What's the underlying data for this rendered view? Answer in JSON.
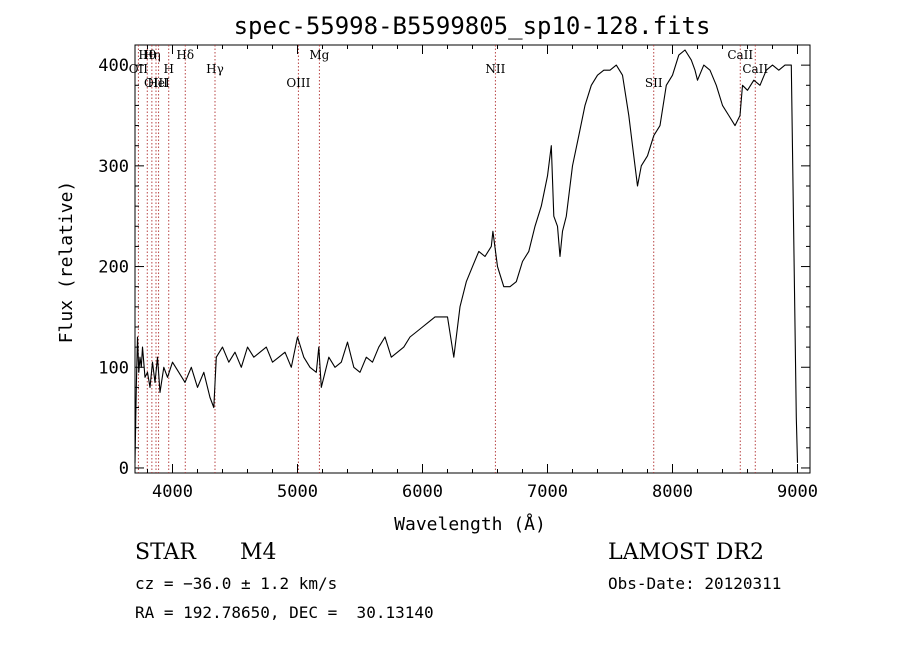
{
  "chart_data": {
    "type": "line",
    "title": "spec-55998-B5599805_sp10-128.fits",
    "xlabel": "Wavelength (Å)",
    "ylabel": "Flux (relative)",
    "xlim": [
      3700,
      9100
    ],
    "ylim": [
      -5,
      420
    ],
    "x_ticks": [
      4000,
      5000,
      6000,
      7000,
      8000,
      9000
    ],
    "y_ticks": [
      0,
      100,
      200,
      300,
      400
    ],
    "grid": false,
    "series": [
      {
        "color": "#000000",
        "x": [
          3700,
          3710,
          3720,
          3730,
          3740,
          3750,
          3760,
          3780,
          3800,
          3820,
          3840,
          3860,
          3880,
          3900,
          3930,
          3960,
          4000,
          4050,
          4100,
          4150,
          4200,
          4250,
          4300,
          4330,
          4350,
          4400,
          4450,
          4500,
          4550,
          4600,
          4650,
          4700,
          4750,
          4800,
          4850,
          4900,
          4950,
          5000,
          5050,
          5100,
          5150,
          5170,
          5190,
          5250,
          5300,
          5350,
          5400,
          5450,
          5500,
          5550,
          5600,
          5650,
          5700,
          5750,
          5800,
          5850,
          5900,
          5950,
          6000,
          6050,
          6100,
          6150,
          6200,
          6250,
          6300,
          6350,
          6400,
          6450,
          6500,
          6550,
          6563,
          6600,
          6650,
          6700,
          6750,
          6800,
          6850,
          6900,
          6950,
          7000,
          7030,
          7050,
          7080,
          7100,
          7120,
          7150,
          7200,
          7250,
          7300,
          7350,
          7400,
          7450,
          7500,
          7550,
          7600,
          7650,
          7680,
          7700,
          7720,
          7750,
          7800,
          7850,
          7900,
          7950,
          8000,
          8050,
          8100,
          8150,
          8180,
          8200,
          8250,
          8300,
          8350,
          8400,
          8450,
          8500,
          8540,
          8560,
          8600,
          8650,
          8700,
          8750,
          8800,
          8850,
          8900,
          8950,
          8990,
          9000
        ],
        "values": [
          5,
          80,
          130,
          95,
          110,
          100,
          120,
          90,
          95,
          80,
          105,
          85,
          110,
          75,
          100,
          90,
          105,
          95,
          85,
          100,
          80,
          95,
          70,
          60,
          110,
          120,
          105,
          115,
          100,
          120,
          110,
          115,
          120,
          105,
          110,
          115,
          100,
          130,
          110,
          100,
          95,
          120,
          80,
          110,
          100,
          105,
          125,
          100,
          95,
          110,
          105,
          120,
          130,
          110,
          115,
          120,
          130,
          135,
          140,
          145,
          150,
          150,
          150,
          110,
          160,
          185,
          200,
          215,
          210,
          220,
          235,
          200,
          180,
          180,
          185,
          205,
          215,
          240,
          260,
          290,
          320,
          250,
          240,
          210,
          235,
          250,
          300,
          330,
          360,
          380,
          390,
          395,
          395,
          400,
          390,
          350,
          320,
          300,
          280,
          300,
          310,
          330,
          340,
          380,
          390,
          410,
          415,
          405,
          395,
          385,
          400,
          395,
          380,
          360,
          350,
          340,
          350,
          380,
          375,
          385,
          380,
          395,
          400,
          395,
          400,
          400,
          50,
          5
        ]
      }
    ],
    "line_markers": [
      {
        "label": "Hθ",
        "x": 3798
      },
      {
        "label": "OII",
        "x": 3727
      },
      {
        "label": "OIII",
        "x": 3868
      },
      {
        "label": "Hη",
        "x": 3835
      },
      {
        "label": "H",
        "x": 3970
      },
      {
        "label": "HeI",
        "x": 3889
      },
      {
        "label": "Hδ",
        "x": 4102
      },
      {
        "label": "Hγ",
        "x": 4340
      },
      {
        "label": "OIII",
        "x": 5007
      },
      {
        "label": "Mg",
        "x": 5175
      },
      {
        "label": "NII",
        "x": 6583
      },
      {
        "label": "SII",
        "x": 7850
      },
      {
        "label": "CaII",
        "x": 8542
      },
      {
        "label": "CaII",
        "x": 8662
      }
    ]
  },
  "footer": {
    "object_type": "STAR",
    "subclass": "M4",
    "survey": "LAMOST DR2",
    "cz": "cz = −36.0 ± 1.2 km/s",
    "obs_date": "Obs-Date: 20120311",
    "coords": "RA = 192.78650, DEC =  30.13140"
  }
}
